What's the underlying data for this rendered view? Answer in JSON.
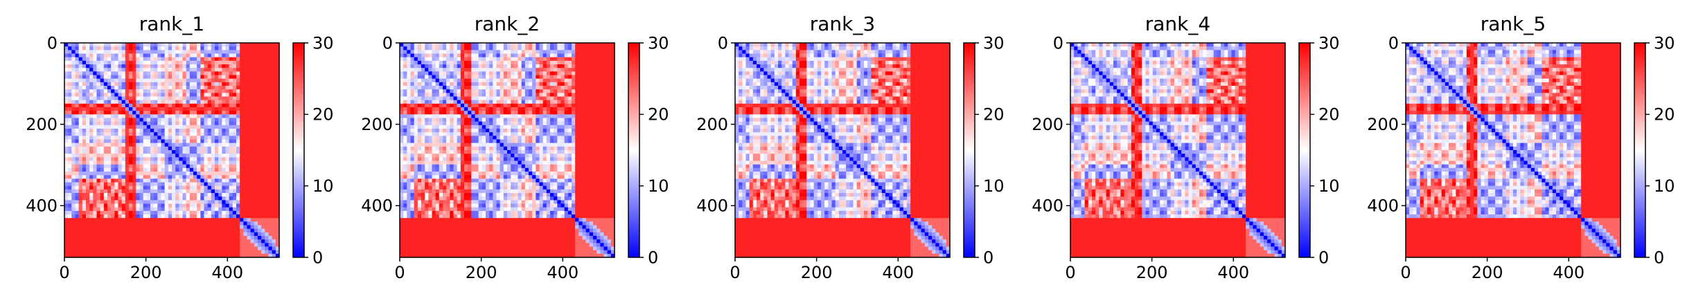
{
  "colors": {
    "low": "#0000ff",
    "mid": "#ffffff",
    "high": "#ff0000",
    "axis": "#000000",
    "background": "#ffffff"
  },
  "chart_data": [
    {
      "type": "heatmap",
      "title": "rank_1",
      "xlabel": "",
      "ylabel": "",
      "xlim": [
        0,
        527
      ],
      "ylim": [
        527,
        0
      ],
      "x_ticks": [
        0,
        200,
        400
      ],
      "y_ticks": [
        0,
        200,
        400
      ],
      "colorbar": {
        "range": [
          0,
          30
        ],
        "ticks": [
          0,
          10,
          20,
          30
        ],
        "colormap": "bwr"
      }
    },
    {
      "type": "heatmap",
      "title": "rank_2",
      "xlabel": "",
      "ylabel": "",
      "xlim": [
        0,
        527
      ],
      "ylim": [
        527,
        0
      ],
      "x_ticks": [
        0,
        200,
        400
      ],
      "y_ticks": [
        0,
        200,
        400
      ],
      "colorbar": {
        "range": [
          0,
          30
        ],
        "ticks": [
          0,
          10,
          20,
          30
        ],
        "colormap": "bwr"
      }
    },
    {
      "type": "heatmap",
      "title": "rank_3",
      "xlabel": "",
      "ylabel": "",
      "xlim": [
        0,
        527
      ],
      "ylim": [
        527,
        0
      ],
      "x_ticks": [
        0,
        200,
        400
      ],
      "y_ticks": [
        0,
        200,
        400
      ],
      "colorbar": {
        "range": [
          0,
          30
        ],
        "ticks": [
          0,
          10,
          20,
          30
        ],
        "colormap": "bwr"
      }
    },
    {
      "type": "heatmap",
      "title": "rank_4",
      "xlabel": "",
      "ylabel": "",
      "xlim": [
        0,
        527
      ],
      "ylim": [
        527,
        0
      ],
      "x_ticks": [
        0,
        200,
        400
      ],
      "y_ticks": [
        0,
        200,
        400
      ],
      "colorbar": {
        "range": [
          0,
          30
        ],
        "ticks": [
          0,
          10,
          20,
          30
        ],
        "colormap": "bwr"
      }
    },
    {
      "type": "heatmap",
      "title": "rank_5",
      "xlabel": "",
      "ylabel": "",
      "xlim": [
        0,
        527
      ],
      "ylim": [
        527,
        0
      ],
      "x_ticks": [
        0,
        200,
        400
      ],
      "y_ticks": [
        0,
        200,
        400
      ],
      "colorbar": {
        "range": [
          0,
          30
        ],
        "ticks": [
          0,
          10,
          20,
          30
        ],
        "colormap": "bwr"
      }
    }
  ]
}
